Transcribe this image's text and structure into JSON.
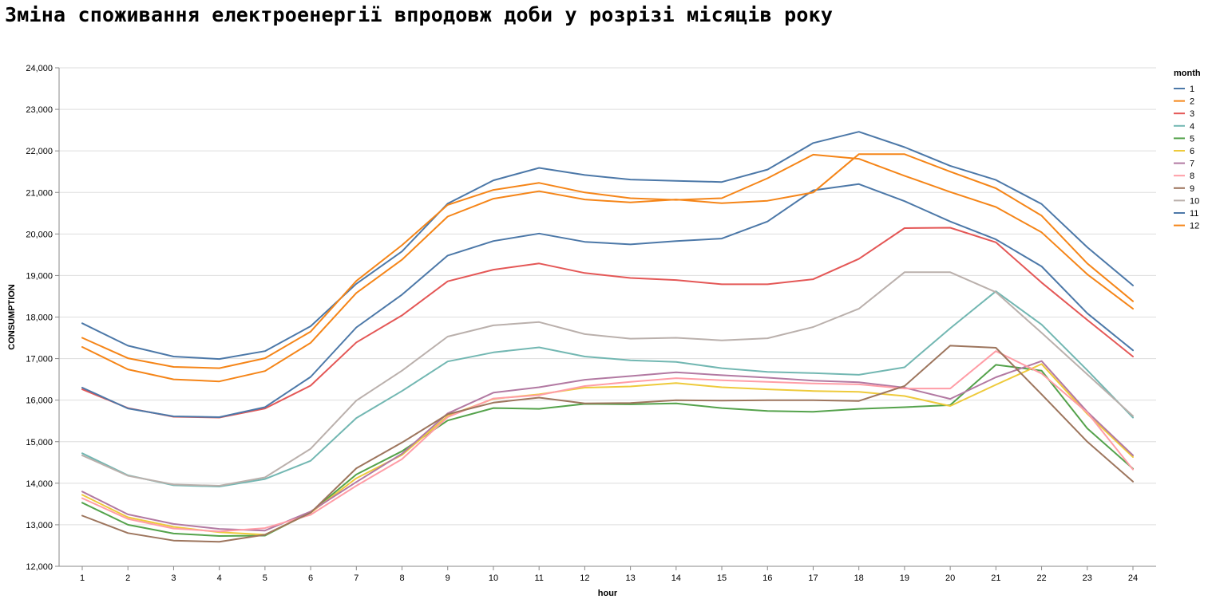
{
  "chart_data": {
    "type": "line",
    "title": "Зміна споживання електроенергії впродовж доби у розрізі місяців року",
    "xlabel": "hour",
    "ylabel": "CONSUMPTION",
    "x": [
      1,
      2,
      3,
      4,
      5,
      6,
      7,
      8,
      9,
      10,
      11,
      12,
      13,
      14,
      15,
      16,
      17,
      18,
      19,
      20,
      21,
      22,
      23,
      24
    ],
    "ylim": [
      12000,
      24000
    ],
    "y_ticks": [
      12000,
      13000,
      14000,
      15000,
      16000,
      17000,
      18000,
      19000,
      20000,
      21000,
      22000,
      23000,
      24000
    ],
    "y_tick_labels": [
      "12,000",
      "13,000",
      "14,000",
      "15,000",
      "16,000",
      "17,000",
      "18,000",
      "19,000",
      "20,000",
      "21,000",
      "22,000",
      "23,000",
      "24,000"
    ],
    "grid": true,
    "legend": {
      "title": "month",
      "position": "right"
    },
    "series": [
      {
        "name": "1",
        "color": "#4c78a8",
        "values": [
          17850,
          17310,
          17050,
          16990,
          17180,
          17780,
          18800,
          19580,
          20730,
          21290,
          21590,
          21420,
          21310,
          21280,
          21250,
          21550,
          22190,
          22460,
          22090,
          21640,
          21300,
          20720,
          19680,
          18760
        ]
      },
      {
        "name": "2",
        "color": "#f58518",
        "values": [
          17500,
          17010,
          16800,
          16770,
          17010,
          17650,
          18870,
          19730,
          20700,
          21060,
          21230,
          21000,
          20860,
          20820,
          20860,
          21340,
          21910,
          21810,
          21400,
          21010,
          20650,
          20040,
          19030,
          18200
        ]
      },
      {
        "name": "3",
        "color": "#e45756",
        "values": [
          16260,
          15810,
          15600,
          15580,
          15800,
          16350,
          17390,
          18040,
          18860,
          19140,
          19290,
          19060,
          18940,
          18890,
          18790,
          18790,
          18910,
          19400,
          20140,
          20150,
          19800,
          18830,
          17930,
          17050
        ]
      },
      {
        "name": "4",
        "color": "#72b7b2",
        "values": [
          14720,
          14190,
          13950,
          13920,
          14100,
          14540,
          15570,
          16220,
          16930,
          17150,
          17270,
          17050,
          16960,
          16920,
          16770,
          16680,
          16650,
          16610,
          16790,
          17730,
          18620,
          17820,
          16720,
          15580
        ]
      },
      {
        "name": "5",
        "color": "#54a24b",
        "values": [
          13530,
          13000,
          12790,
          12730,
          12740,
          13300,
          14210,
          14770,
          15510,
          15810,
          15790,
          15910,
          15900,
          15920,
          15810,
          15740,
          15720,
          15790,
          15830,
          15880,
          16850,
          16710,
          15320,
          14350
        ]
      },
      {
        "name": "6",
        "color": "#eeca3b",
        "values": [
          13720,
          13180,
          12950,
          12820,
          12760,
          13290,
          14120,
          14680,
          15620,
          16030,
          16140,
          16300,
          16330,
          16410,
          16310,
          16260,
          16220,
          16200,
          16100,
          15860,
          16370,
          16870,
          15670,
          14630
        ]
      },
      {
        "name": "7",
        "color": "#b279a2",
        "values": [
          13800,
          13250,
          13020,
          12900,
          12860,
          13320,
          14030,
          14710,
          15680,
          16180,
          16310,
          16490,
          16580,
          16670,
          16600,
          16540,
          16470,
          16430,
          16300,
          16030,
          16550,
          16940,
          15720,
          14670
        ]
      },
      {
        "name": "8",
        "color": "#ff9da6",
        "values": [
          13640,
          13140,
          12910,
          12840,
          12920,
          13240,
          13940,
          14580,
          15590,
          16040,
          16120,
          16340,
          16440,
          16530,
          16480,
          16440,
          16400,
          16380,
          16280,
          16280,
          17180,
          16640,
          15700,
          14330
        ]
      },
      {
        "name": "9",
        "color": "#9d755d",
        "values": [
          13220,
          12800,
          12620,
          12590,
          12760,
          13290,
          14360,
          14980,
          15660,
          15940,
          16060,
          15920,
          15930,
          16000,
          15990,
          16000,
          16000,
          15980,
          16340,
          17310,
          17260,
          16140,
          15000,
          14040
        ]
      },
      {
        "name": "10",
        "color": "#bab0ac",
        "values": [
          14670,
          14180,
          13970,
          13940,
          14140,
          14830,
          15990,
          16710,
          17530,
          17800,
          17880,
          17590,
          17480,
          17500,
          17440,
          17490,
          17760,
          18200,
          19080,
          19080,
          18600,
          17620,
          16620,
          15620
        ]
      },
      {
        "name": "11",
        "color": "#4c78a8",
        "values": [
          16300,
          15800,
          15610,
          15590,
          15830,
          16560,
          17750,
          18540,
          19480,
          19830,
          20010,
          19810,
          19750,
          19830,
          19890,
          20300,
          21050,
          21200,
          20790,
          20300,
          19870,
          19220,
          18090,
          17200
        ]
      },
      {
        "name": "12",
        "color": "#f58518",
        "values": [
          17280,
          16740,
          16500,
          16450,
          16700,
          17380,
          18580,
          19380,
          20420,
          20850,
          21030,
          20830,
          20760,
          20830,
          20740,
          20800,
          21000,
          21920,
          21920,
          21500,
          21100,
          20440,
          19290,
          18380
        ]
      }
    ]
  }
}
